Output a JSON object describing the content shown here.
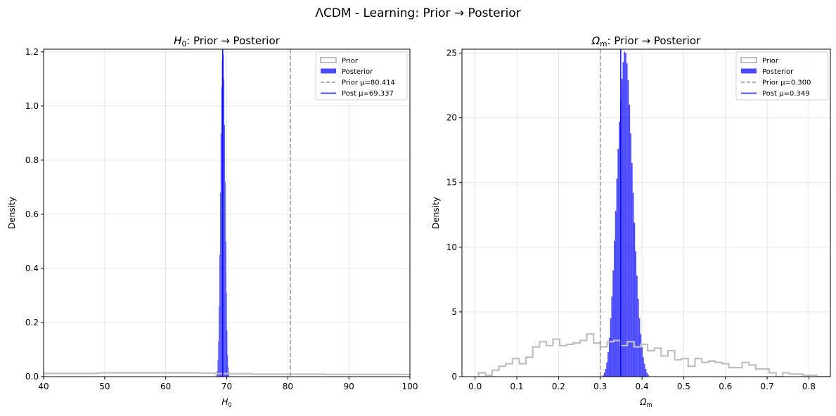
{
  "figure": {
    "suptitle": "ΛCDM - Learning: Prior → Posterior"
  },
  "chart_data": [
    {
      "type": "histogram",
      "title_symbol": "H",
      "title_sub": "0",
      "title_rest": ": Prior → Posterior",
      "xlabel_symbol": "H",
      "xlabel_sub": "0",
      "ylabel": "Density",
      "xlim": [
        40,
        100
      ],
      "ylim": [
        0,
        1.21
      ],
      "xticks": [
        40,
        50,
        60,
        70,
        80,
        90,
        100
      ],
      "xtick_labels": [
        "40",
        "50",
        "60",
        "70",
        "80",
        "90",
        "100"
      ],
      "yticks": [
        0,
        0.2,
        0.4,
        0.6,
        0.8,
        1.0,
        1.2
      ],
      "ytick_labels": [
        "0.0",
        "0.2",
        "0.4",
        "0.6",
        "0.8",
        "1.0",
        "1.2"
      ],
      "grid": true,
      "legend_position": "top-right",
      "legend": [
        "Prior",
        "Posterior",
        "Prior μ=80.414",
        "Post μ=69.337"
      ],
      "prior_mean": 80.414,
      "post_mean": 69.337,
      "prior_steps": [
        [
          40,
          0.012
        ],
        [
          49,
          0.014
        ],
        [
          66,
          0.013
        ],
        [
          68,
          0.011
        ],
        [
          74,
          0.009
        ],
        [
          86,
          0.008
        ],
        [
          100,
          0.008
        ]
      ],
      "posterior_bins": [
        [
          68.3,
          0.006
        ],
        [
          68.4,
          0.02
        ],
        [
          68.5,
          0.06
        ],
        [
          68.6,
          0.13
        ],
        [
          68.7,
          0.26
        ],
        [
          68.8,
          0.45
        ],
        [
          68.9,
          0.68
        ],
        [
          69.0,
          0.9
        ],
        [
          69.1,
          1.07
        ],
        [
          69.2,
          1.17
        ],
        [
          69.3,
          1.21
        ],
        [
          69.4,
          1.19
        ],
        [
          69.5,
          1.1
        ],
        [
          69.6,
          0.93
        ],
        [
          69.7,
          0.72
        ],
        [
          69.8,
          0.5
        ],
        [
          69.9,
          0.31
        ],
        [
          70.0,
          0.17
        ],
        [
          70.1,
          0.08
        ],
        [
          70.2,
          0.035
        ],
        [
          70.3,
          0.012
        ]
      ],
      "posterior_bin_width": 0.1,
      "colors": {
        "prior": "#bfbfbf",
        "posterior": "#0000ff",
        "prior_mean": "#999999",
        "post_mean": "#0000ff"
      }
    },
    {
      "type": "histogram",
      "title_symbol": "Ω",
      "title_sub": "m",
      "title_rest": ": Prior → Posterior",
      "xlabel_symbol": "Ω",
      "xlabel_sub": "m",
      "ylabel": "Density",
      "xlim": [
        -0.0315,
        0.8515
      ],
      "ylim": [
        0,
        25.3
      ],
      "xticks": [
        0.0,
        0.1,
        0.2,
        0.3,
        0.4,
        0.5,
        0.6,
        0.7,
        0.8
      ],
      "xtick_labels": [
        "0.0",
        "0.1",
        "0.2",
        "0.3",
        "0.4",
        "0.5",
        "0.6",
        "0.7",
        "0.8"
      ],
      "yticks": [
        0,
        5,
        10,
        15,
        20,
        25
      ],
      "ytick_labels": [
        "0",
        "5",
        "10",
        "15",
        "20",
        "25"
      ],
      "grid": true,
      "legend_position": "top-right",
      "legend": [
        "Prior",
        "Posterior",
        "Prior μ=0.300",
        "Post μ=0.349"
      ],
      "prior_mean": 0.3,
      "post_mean": 0.349,
      "prior_start": 0.0085,
      "prior_bin_width": 0.0162,
      "prior_values": [
        0.3,
        0.1,
        0.5,
        0.8,
        1.0,
        1.4,
        1.0,
        1.5,
        2.3,
        2.7,
        2.4,
        2.9,
        2.4,
        2.5,
        2.6,
        2.8,
        3.3,
        2.6,
        2.3,
        2.7,
        2.8,
        2.4,
        2.7,
        2.3,
        2.5,
        2.0,
        2.2,
        1.6,
        2.0,
        1.3,
        1.4,
        0.8,
        1.4,
        1.1,
        1.2,
        1.1,
        1.0,
        0.7,
        0.7,
        1.1,
        0.9,
        0.6,
        0.6,
        0.3,
        0.0,
        0.3,
        0.2,
        0.2,
        0.1,
        0.1,
        0.0,
        0.0,
        0.1,
        0.1,
        0.0,
        0.1
      ],
      "posterior_start": 0.3055,
      "posterior_bin_width": 0.003,
      "posterior_values": [
        0.1,
        0.3,
        0.6,
        1.1,
        1.9,
        3.0,
        4.5,
        6.2,
        8.2,
        10.5,
        12.8,
        15.3,
        17.6,
        19.7,
        21.4,
        23.0,
        24.3,
        25.1,
        25.0,
        24.2,
        22.9,
        21.0,
        18.8,
        16.5,
        14.2,
        11.9,
        9.7,
        7.8,
        6.0,
        4.5,
        3.3,
        2.3,
        1.5,
        1.0,
        0.6,
        0.3,
        0.15
      ],
      "colors": {
        "prior": "#bfbfbf",
        "posterior": "#0000ff",
        "prior_mean": "#999999",
        "post_mean": "#0000ff"
      }
    }
  ]
}
